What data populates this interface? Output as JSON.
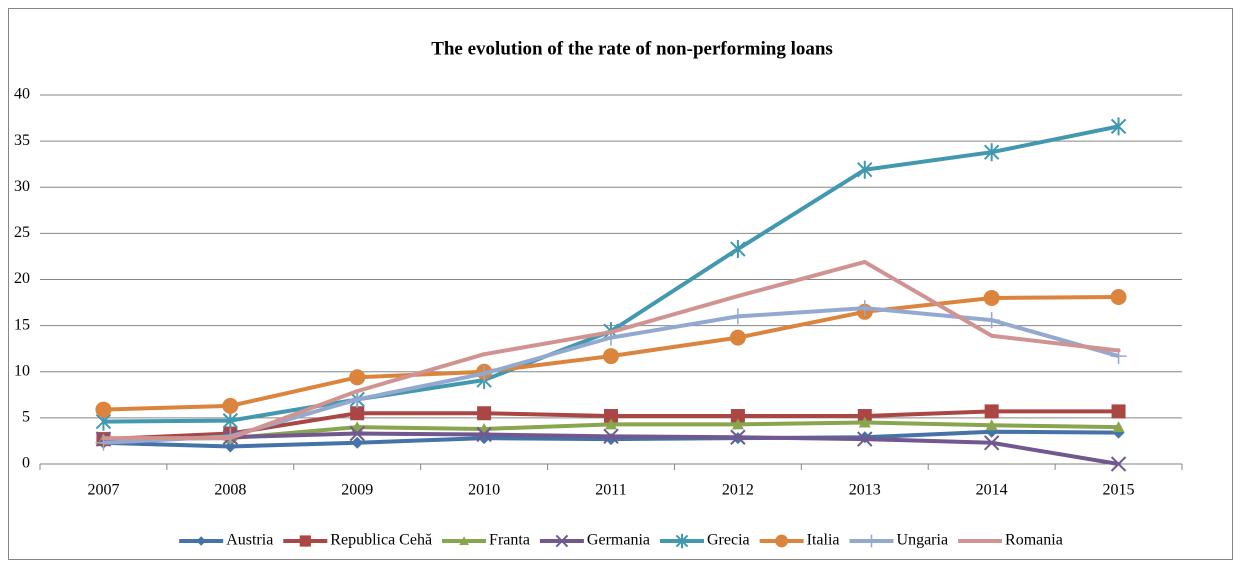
{
  "chart_data": {
    "type": "line",
    "title": "The evolution of the rate of non-performing loans",
    "categories": [
      "2007",
      "2008",
      "2009",
      "2010",
      "2011",
      "2012",
      "2013",
      "2014",
      "2015"
    ],
    "ylim": [
      0,
      40
    ],
    "yticks": [
      0,
      5,
      10,
      15,
      20,
      25,
      30,
      35,
      40
    ],
    "grid": true,
    "legend": "bottom",
    "series": [
      {
        "name": "Austria",
        "color": "#4572a7",
        "marker": "diamond",
        "values": [
          2.3,
          1.9,
          2.3,
          2.8,
          2.7,
          2.8,
          2.9,
          3.5,
          3.4
        ]
      },
      {
        "name": "Republica Cehă",
        "color": "#aa4643",
        "marker": "square",
        "values": [
          2.7,
          3.3,
          5.5,
          5.5,
          5.2,
          5.2,
          5.2,
          5.7,
          5.7
        ]
      },
      {
        "name": "Franta",
        "color": "#89a54e",
        "marker": "triangle",
        "values": [
          2.7,
          2.8,
          4.0,
          3.8,
          4.3,
          4.3,
          4.5,
          4.2,
          4.0
        ]
      },
      {
        "name": "Germania",
        "color": "#71588f",
        "marker": "x",
        "values": [
          2.7,
          2.9,
          3.3,
          3.2,
          3.0,
          2.9,
          2.7,
          2.3,
          0.0
        ]
      },
      {
        "name": "Grecia",
        "color": "#4198af",
        "marker": "asterisk",
        "values": [
          4.6,
          4.7,
          7.0,
          9.1,
          14.4,
          23.3,
          31.9,
          33.8,
          36.6
        ]
      },
      {
        "name": "Italia",
        "color": "#db843d",
        "marker": "circle",
        "values": [
          5.9,
          6.3,
          9.4,
          10.0,
          11.7,
          13.7,
          16.5,
          18.0,
          18.1
        ]
      },
      {
        "name": "Ungaria",
        "color": "#93a9cf",
        "marker": "plus",
        "values": [
          2.3,
          3.0,
          7.0,
          9.8,
          13.7,
          16.0,
          16.9,
          15.6,
          11.7
        ]
      },
      {
        "name": "Romania",
        "color": "#d19392",
        "marker": "none",
        "values": [
          2.8,
          2.8,
          7.9,
          11.9,
          14.3,
          18.2,
          21.9,
          13.9,
          12.3
        ]
      }
    ]
  }
}
